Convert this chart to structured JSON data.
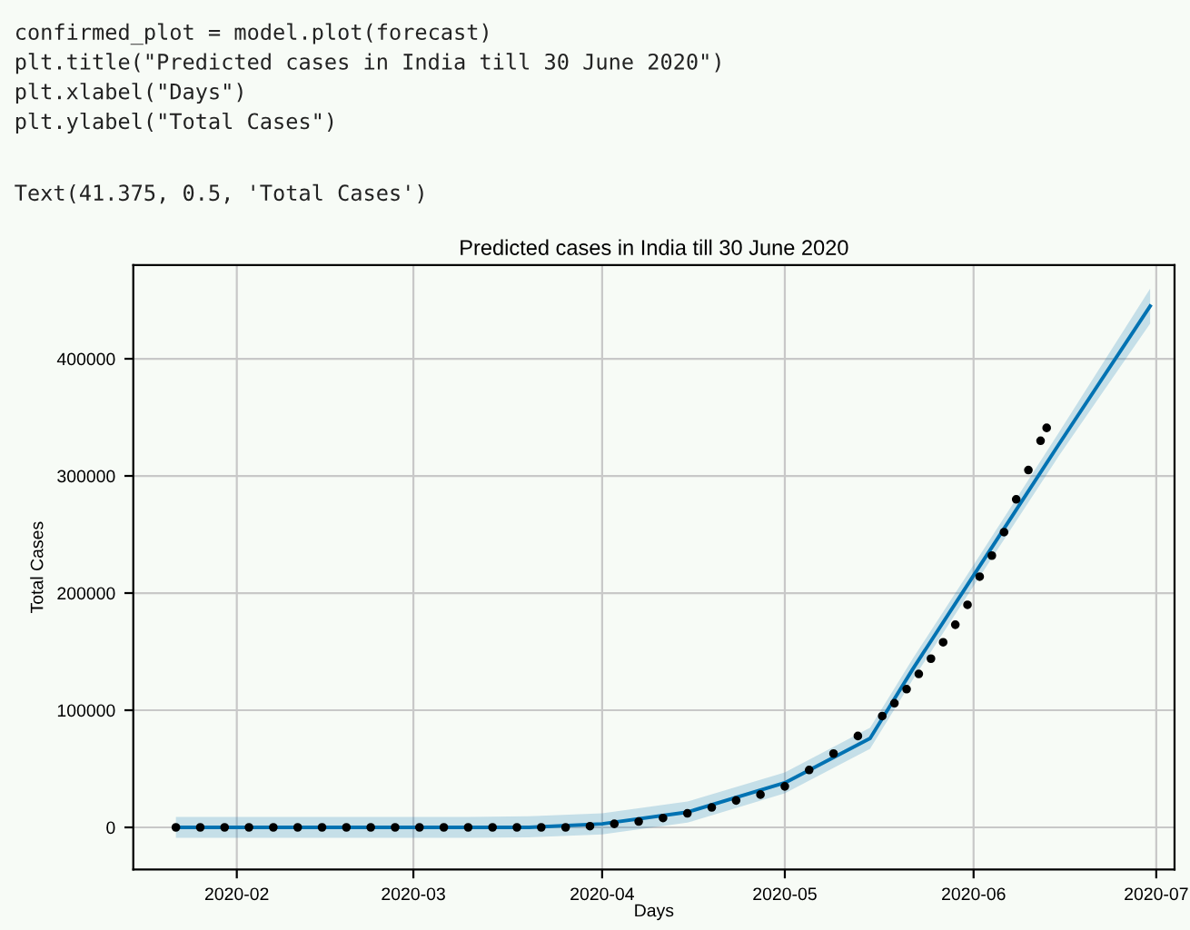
{
  "chart_data": {
    "type": "scatter",
    "title": "Predicted cases in India till 30 June 2020",
    "xlabel": "Days",
    "ylabel": "Total Cases",
    "annotations": [
      "confirmed_plot = model.plot(forecast)",
      "plt.title(\"Predicted cases in India till 30 June 2020\")",
      "plt.xlabel(\"Days\")",
      "plt.ylabel(\"Total Cases\")",
      "Text(41.375, 0.5, 'Total Cases')"
    ],
    "xlim": [
      "2020-01-15",
      "2020-07-04"
    ],
    "ylim": [
      -36000,
      480000
    ],
    "xticks": [
      {
        "value": "2020-02",
        "label": "2020-02"
      },
      {
        "value": "2020-03",
        "label": "2020-03"
      },
      {
        "value": "2020-04",
        "label": "2020-04"
      },
      {
        "value": "2020-05",
        "label": "2020-05"
      },
      {
        "value": "2020-06",
        "label": "2020-06"
      },
      {
        "value": "2020-07",
        "label": "2020-07"
      }
    ],
    "yticks": [
      0,
      100000,
      200000,
      300000,
      400000
    ],
    "grid": true,
    "series": [
      {
        "type": "line",
        "color": "#0072b2",
        "line_style": "solid",
        "marker": "none",
        "x": [
          "2020-01-22",
          "2020-02-15",
          "2020-03-10",
          "2020-03-20",
          "2020-04-01",
          "2020-04-15",
          "2020-05-01",
          "2020-05-15",
          "2020-05-22",
          "2020-06-01",
          "2020-06-15",
          "2020-06-30"
        ],
        "values": [
          0,
          0,
          0,
          0,
          3000,
          13000,
          38000,
          76000,
          135000,
          215000,
          327000,
          445000
        ],
        "lower": [
          -9000,
          -9000,
          -9000,
          -8500,
          -6000,
          4000,
          29000,
          67000,
          126000,
          206000,
          317000,
          430000
        ],
        "upper": [
          9000,
          9000,
          9000,
          9500,
          12000,
          22000,
          47000,
          85000,
          144000,
          224000,
          337000,
          460000
        ]
      },
      {
        "color": "#000000",
        "marker": "circle",
        "x": [
          "2020-01-22",
          "2020-01-26",
          "2020-01-30",
          "2020-02-03",
          "2020-02-07",
          "2020-02-11",
          "2020-02-15",
          "2020-02-19",
          "2020-02-23",
          "2020-02-27",
          "2020-03-02",
          "2020-03-06",
          "2020-03-10",
          "2020-03-14",
          "2020-03-18",
          "2020-03-22",
          "2020-03-26",
          "2020-03-30",
          "2020-04-03",
          "2020-04-07",
          "2020-04-11",
          "2020-04-15",
          "2020-04-19",
          "2020-04-23",
          "2020-04-27",
          "2020-05-01",
          "2020-05-05",
          "2020-05-09",
          "2020-05-13",
          "2020-05-17",
          "2020-05-19",
          "2020-05-21",
          "2020-05-23",
          "2020-05-25",
          "2020-05-27",
          "2020-05-29",
          "2020-05-31",
          "2020-06-02",
          "2020-06-04",
          "2020-06-06",
          "2020-06-08",
          "2020-06-10",
          "2020-06-12",
          "2020-06-13"
        ],
        "values": [
          0,
          0,
          0,
          0,
          0,
          0,
          0,
          0,
          0,
          0,
          0,
          0,
          0,
          0,
          0,
          0,
          0,
          1000,
          3000,
          5000,
          8000,
          12000,
          17000,
          23000,
          28000,
          35000,
          49000,
          63000,
          78000,
          95000,
          106000,
          118000,
          131000,
          144000,
          158000,
          173000,
          190000,
          214000,
          232000,
          252000,
          280000,
          305000,
          330000,
          341000
        ]
      }
    ]
  }
}
